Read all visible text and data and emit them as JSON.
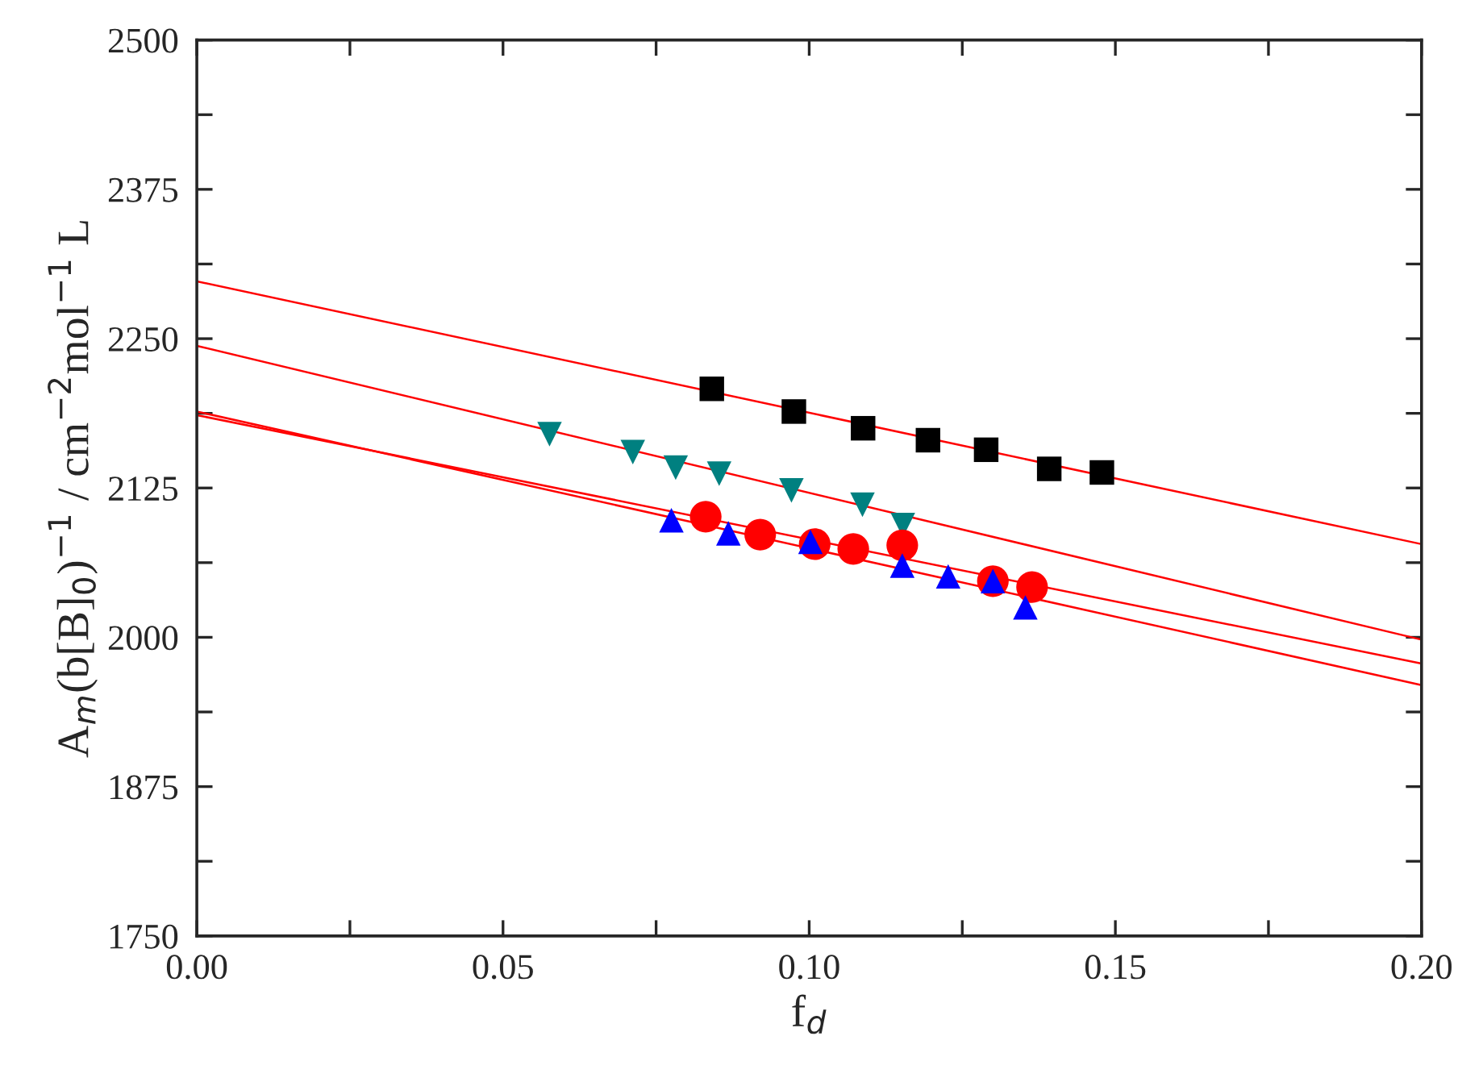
{
  "chart_data": {
    "type": "scatter",
    "xlabel": "f$_{d}$",
    "ylabel": "A$_{m}$(b[B]$_{0}$)$^{−1}$ / cm$^{−2}$mol$^{−1}$ L",
    "xlim": [
      0,
      0.2
    ],
    "ylim": [
      1750,
      2500
    ],
    "xticks": [
      {
        "value": 0,
        "label": "0.00"
      },
      {
        "value": 0.025,
        "label": null
      },
      {
        "value": 0.05,
        "label": "0.05"
      },
      {
        "value": 0.075,
        "label": null
      },
      {
        "value": 0.1,
        "label": "0.10"
      },
      {
        "value": 0.125,
        "label": null
      },
      {
        "value": 0.15,
        "label": "0.15"
      },
      {
        "value": 0.175,
        "label": null
      },
      {
        "value": 0.2,
        "label": "0.20"
      }
    ],
    "yticks": [
      1750,
      {
        "value": 1812.5,
        "label": null
      },
      1875,
      {
        "value": 1937.5,
        "label": null
      },
      2000,
      {
        "value": 2062.5,
        "label": null
      },
      2125,
      {
        "value": 2187.5,
        "label": null
      },
      2250,
      {
        "value": 2312.5,
        "label": null
      },
      2375,
      {
        "value": 2437.5,
        "label": null
      },
      2500
    ],
    "grid": false,
    "legend": false,
    "series": [
      {
        "marker": "square",
        "color": "#000000",
        "x": [
          0.0841,
          0.0975,
          0.1088,
          0.1194,
          0.1289,
          0.1392,
          0.1478
        ],
        "values": [
          2208,
          2189,
          2175,
          2165,
          2157,
          2141,
          2138
        ]
      },
      {
        "marker": "triangle_down",
        "color": "#008080",
        "x": [
          0.0576,
          0.0712,
          0.0782,
          0.0853,
          0.0971,
          0.1087,
          0.1153
        ],
        "values": [
          2170,
          2155,
          2142,
          2137,
          2123,
          2111,
          2094
        ]
      },
      {
        "marker": "circle",
        "color": "#ff0000",
        "x": [
          0.0831,
          0.092,
          0.1009,
          0.1072,
          0.1152,
          0.13,
          0.1364
        ],
        "values": [
          2101,
          2086,
          2078,
          2074,
          2077,
          2047,
          2042
        ]
      },
      {
        "marker": "triangle",
        "color": "#0000ff",
        "x": [
          0.0775,
          0.0868,
          0.1002,
          0.1152,
          0.1227,
          0.13,
          0.1353
        ],
        "values": [
          2098,
          2087,
          2080,
          2060,
          2051,
          2047,
          2025
        ]
      },
      {
        "type": "line",
        "color": "#ff0000",
        "x": [
          0,
          0.2
        ],
        "values": [
          2298,
          2078
        ]
      },
      {
        "type": "line",
        "color": "#ff0000",
        "x": [
          0,
          0.2
        ],
        "values": [
          2244,
          1998
        ]
      },
      {
        "type": "line",
        "color": "#ff0000",
        "x": [
          0,
          0.2
        ],
        "values": [
          2186,
          1978
        ]
      },
      {
        "type": "line",
        "color": "#ff0000",
        "x": [
          0,
          0.2
        ],
        "values": [
          2189,
          1960
        ]
      }
    ]
  }
}
